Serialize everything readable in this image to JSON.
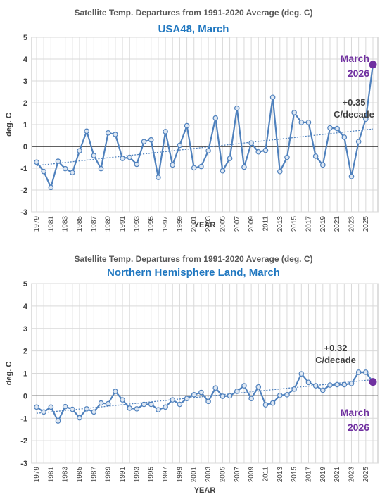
{
  "chart_data": [
    {
      "type": "line",
      "title": "Satellite Temp. Departures from 1991-2020 Average (deg. C)",
      "subtitle": "USA48, March",
      "xlabel": "YEAR",
      "ylabel": "deg. C",
      "ylim": [
        -3,
        5
      ],
      "yticks": [
        "5",
        "4",
        "3",
        "2",
        "1",
        "0",
        "-1",
        "-2",
        "-3"
      ],
      "x": [
        1979,
        1980,
        1981,
        1982,
        1983,
        1984,
        1985,
        1986,
        1987,
        1988,
        1989,
        1990,
        1991,
        1992,
        1993,
        1994,
        1995,
        1996,
        1997,
        1998,
        1999,
        2000,
        2001,
        2002,
        2003,
        2004,
        2005,
        2006,
        2007,
        2008,
        2009,
        2010,
        2011,
        2012,
        2013,
        2014,
        2015,
        2016,
        2017,
        2018,
        2019,
        2020,
        2021,
        2022,
        2023,
        2024,
        2025,
        2026
      ],
      "xticks": [
        "1979",
        "1981",
        "1983",
        "1985",
        "1987",
        "1989",
        "1991",
        "1993",
        "1995",
        "1997",
        "1999",
        "2001",
        "2003",
        "2005",
        "2007",
        "2009",
        "2011",
        "2013",
        "2015",
        "2017",
        "2019",
        "2021",
        "2023",
        "2025"
      ],
      "values": [
        -0.72,
        -1.15,
        -1.88,
        -0.68,
        -1.02,
        -1.2,
        -0.2,
        0.7,
        -0.42,
        -1.02,
        0.62,
        0.55,
        -0.55,
        -0.5,
        -0.82,
        0.22,
        0.3,
        -1.42,
        0.68,
        -0.85,
        0.05,
        0.95,
        -0.98,
        -0.92,
        -0.2,
        1.3,
        -1.12,
        -0.55,
        1.75,
        -0.95,
        0.15,
        -0.25,
        -0.18,
        2.25,
        -1.15,
        -0.5,
        1.55,
        1.1,
        1.1,
        -0.45,
        -0.85,
        0.85,
        0.82,
        0.42,
        -1.38,
        0.22,
        1.25,
        3.75
      ],
      "trend": {
        "label": "+0.35\nC/decade",
        "start": -0.88,
        "end": 0.8
      },
      "current_label": "March\n2026",
      "current_value": 3.75,
      "line_color": "#4f81bd",
      "marker_fill": "#dce6f2",
      "trend_color": "#4f81bd",
      "current_color": "#7030a0",
      "grid": true
    },
    {
      "type": "line",
      "title": "Satellite Temp. Departures from 1991-2020 Average (deg. C)",
      "subtitle": "Northern Hemisphere Land, March",
      "xlabel": "YEAR",
      "ylabel": "deg. C",
      "ylim": [
        -3,
        5
      ],
      "yticks": [
        "5",
        "4",
        "3",
        "2",
        "1",
        "0",
        "-1",
        "-2",
        "-3"
      ],
      "x": [
        1979,
        1980,
        1981,
        1982,
        1983,
        1984,
        1985,
        1986,
        1987,
        1988,
        1989,
        1990,
        1991,
        1992,
        1993,
        1994,
        1995,
        1996,
        1997,
        1998,
        1999,
        2000,
        2001,
        2002,
        2003,
        2004,
        2005,
        2006,
        2007,
        2008,
        2009,
        2010,
        2011,
        2012,
        2013,
        2014,
        2015,
        2016,
        2017,
        2018,
        2019,
        2020,
        2021,
        2022,
        2023,
        2024,
        2025,
        2026
      ],
      "xticks": [
        "1979",
        "1981",
        "1983",
        "1985",
        "1987",
        "1989",
        "1991",
        "1993",
        "1995",
        "1997",
        "1999",
        "2001",
        "2003",
        "2005",
        "2007",
        "2009",
        "2011",
        "2013",
        "2015",
        "2017",
        "2019",
        "2021",
        "2023",
        "2025"
      ],
      "values": [
        -0.5,
        -0.72,
        -0.5,
        -1.12,
        -0.48,
        -0.6,
        -0.98,
        -0.58,
        -0.72,
        -0.32,
        -0.35,
        0.2,
        -0.18,
        -0.55,
        -0.58,
        -0.38,
        -0.38,
        -0.62,
        -0.5,
        -0.18,
        -0.38,
        -0.12,
        0.05,
        0.15,
        -0.25,
        0.35,
        -0.02,
        0.0,
        0.2,
        0.45,
        -0.12,
        0.4,
        -0.4,
        -0.32,
        0.02,
        0.05,
        0.3,
        0.98,
        0.6,
        0.45,
        0.25,
        0.48,
        0.5,
        0.5,
        0.55,
        1.05,
        1.05,
        0.62
      ],
      "trend": {
        "label": "+0.32\nC/decade",
        "start": -0.78,
        "end": 0.72
      },
      "current_label": "March\n2026",
      "current_value": 0.62,
      "line_color": "#4f81bd",
      "marker_fill": "#dce6f2",
      "trend_color": "#4f81bd",
      "current_color": "#7030a0",
      "grid": true
    }
  ]
}
